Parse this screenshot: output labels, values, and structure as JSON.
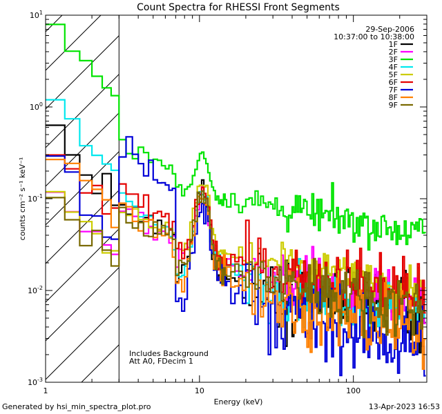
{
  "chart_data": {
    "type": "line",
    "title": "Count Spectra for RHESSI Front Segments",
    "xlabel": "Energy (keV)",
    "ylabel": "counts cm⁻² s⁻¹ keV⁻¹",
    "xscale": "log",
    "yscale": "log",
    "xlim": [
      1,
      300
    ],
    "ylim": [
      0.001,
      10
    ],
    "x_tick_labels": [
      "1",
      "10",
      "100"
    ],
    "y_tick_labels": [
      {
        "mantissa": "10",
        "exp": "1"
      },
      {
        "mantissa": "10",
        "exp": "0"
      },
      {
        "mantissa": "10",
        "exp": "-1"
      },
      {
        "mantissa": "10",
        "exp": "-2"
      },
      {
        "mantissa": "10",
        "exp": "-3"
      }
    ],
    "date": "29-Sep-2006",
    "time_range": "10:37:00 to 10:38:00",
    "annotation_lines": [
      "Includes Background",
      "Att A0, FDecim 1"
    ],
    "shaded_region_keV": [
      1,
      3
    ],
    "series": [
      {
        "name": "1F",
        "color": "#000000"
      },
      {
        "name": "2F",
        "color": "#ff00ff"
      },
      {
        "name": "3F",
        "color": "#00e400"
      },
      {
        "name": "4F",
        "color": "#00e8ee"
      },
      {
        "name": "5F",
        "color": "#cccc00"
      },
      {
        "name": "6F",
        "color": "#e40000"
      },
      {
        "name": "7F",
        "color": "#0000d8"
      },
      {
        "name": "8F",
        "color": "#ff8000"
      },
      {
        "name": "9F",
        "color": "#7a6a00"
      }
    ]
  },
  "footer": {
    "left": "Generated by hsi_min_spectra_plot.pro",
    "right": "13-Apr-2023 16:53"
  }
}
